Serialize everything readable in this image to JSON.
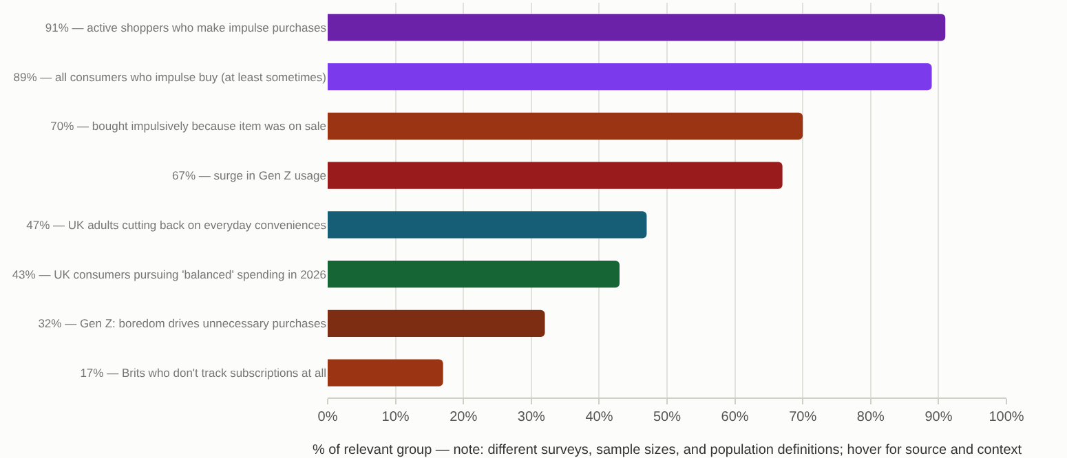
{
  "chart_data": {
    "type": "bar",
    "orientation": "horizontal",
    "xlabel": "% of relevant group — note: different surveys, sample sizes, and population definitions; hover for source and context",
    "categories": [
      "91% — active shoppers who make impulse purchases",
      "89% — all consumers who impulse buy (at least sometimes)",
      "70% — bought impulsively because item was on sale",
      "67% — surge in Gen Z usage",
      "47% — UK adults cutting back on everyday conveniences",
      "43% — UK consumers pursuing 'balanced' spending in 2026",
      "32% — Gen Z: boredom drives unnecessary purchases",
      "17% — Brits who don't track subscriptions at all"
    ],
    "values": [
      91,
      89,
      70,
      67,
      47,
      43,
      32,
      17
    ],
    "colors": [
      "#6b21a8",
      "#7c3aed",
      "#9a3412",
      "#991b1b",
      "#155e75",
      "#166534",
      "#7c2d12",
      "#9a3412"
    ],
    "xlim": [
      0,
      100
    ],
    "xticks": [
      {
        "value": 0,
        "label": "0%"
      },
      {
        "value": 10,
        "label": "10%"
      },
      {
        "value": 20,
        "label": "20%"
      },
      {
        "value": 30,
        "label": "30%"
      },
      {
        "value": 40,
        "label": "40%"
      },
      {
        "value": 50,
        "label": "50%"
      },
      {
        "value": 60,
        "label": "60%"
      },
      {
        "value": 70,
        "label": "70%"
      },
      {
        "value": 80,
        "label": "80%"
      },
      {
        "value": 90,
        "label": "90%"
      },
      {
        "value": 100,
        "label": "100%"
      }
    ],
    "grid": "x"
  }
}
